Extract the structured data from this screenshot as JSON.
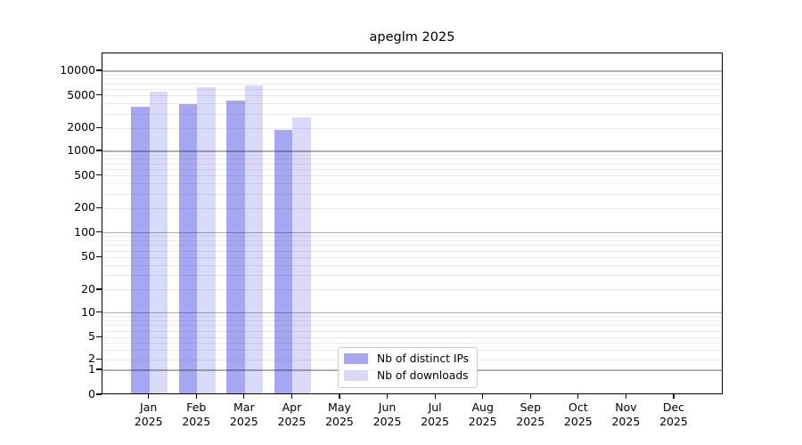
{
  "title": "apeglm 2025",
  "chart_data": {
    "type": "bar",
    "title": "apeglm 2025",
    "categories": [
      {
        "month": "Jan",
        "year": "2025"
      },
      {
        "month": "Feb",
        "year": "2025"
      },
      {
        "month": "Mar",
        "year": "2025"
      },
      {
        "month": "Apr",
        "year": "2025"
      },
      {
        "month": "May",
        "year": "2025"
      },
      {
        "month": "Jun",
        "year": "2025"
      },
      {
        "month": "Jul",
        "year": "2025"
      },
      {
        "month": "Aug",
        "year": "2025"
      },
      {
        "month": "Sep",
        "year": "2025"
      },
      {
        "month": "Oct",
        "year": "2025"
      },
      {
        "month": "Nov",
        "year": "2025"
      },
      {
        "month": "Dec",
        "year": "2025"
      }
    ],
    "series": [
      {
        "name": "Nb of distinct IPs",
        "color": "#a6a6f2",
        "values": [
          3520,
          3765,
          4190,
          1805,
          null,
          null,
          null,
          null,
          null,
          null,
          null,
          null
        ]
      },
      {
        "name": "Nb of downloads",
        "color": "#d9d9f8",
        "values": [
          5380,
          6125,
          6390,
          2610,
          null,
          null,
          null,
          null,
          null,
          null,
          null,
          null
        ]
      }
    ],
    "yticks": [
      0,
      1,
      2,
      5,
      10,
      20,
      50,
      100,
      200,
      500,
      1000,
      2000,
      5000,
      10000
    ],
    "yscale": "log-like with 0 baseline",
    "ylim": [
      0,
      16000
    ],
    "grid": "horizontal major + minor",
    "legend_position": "lower center"
  },
  "colors": {
    "bar_distinct_ips": "#a6a6f2",
    "bar_downloads": "#d9d9f8",
    "major_grid": "#b0b0b0",
    "minor_grid": "#ececec",
    "axis": "#000000",
    "legend_border": "#cccccc"
  }
}
